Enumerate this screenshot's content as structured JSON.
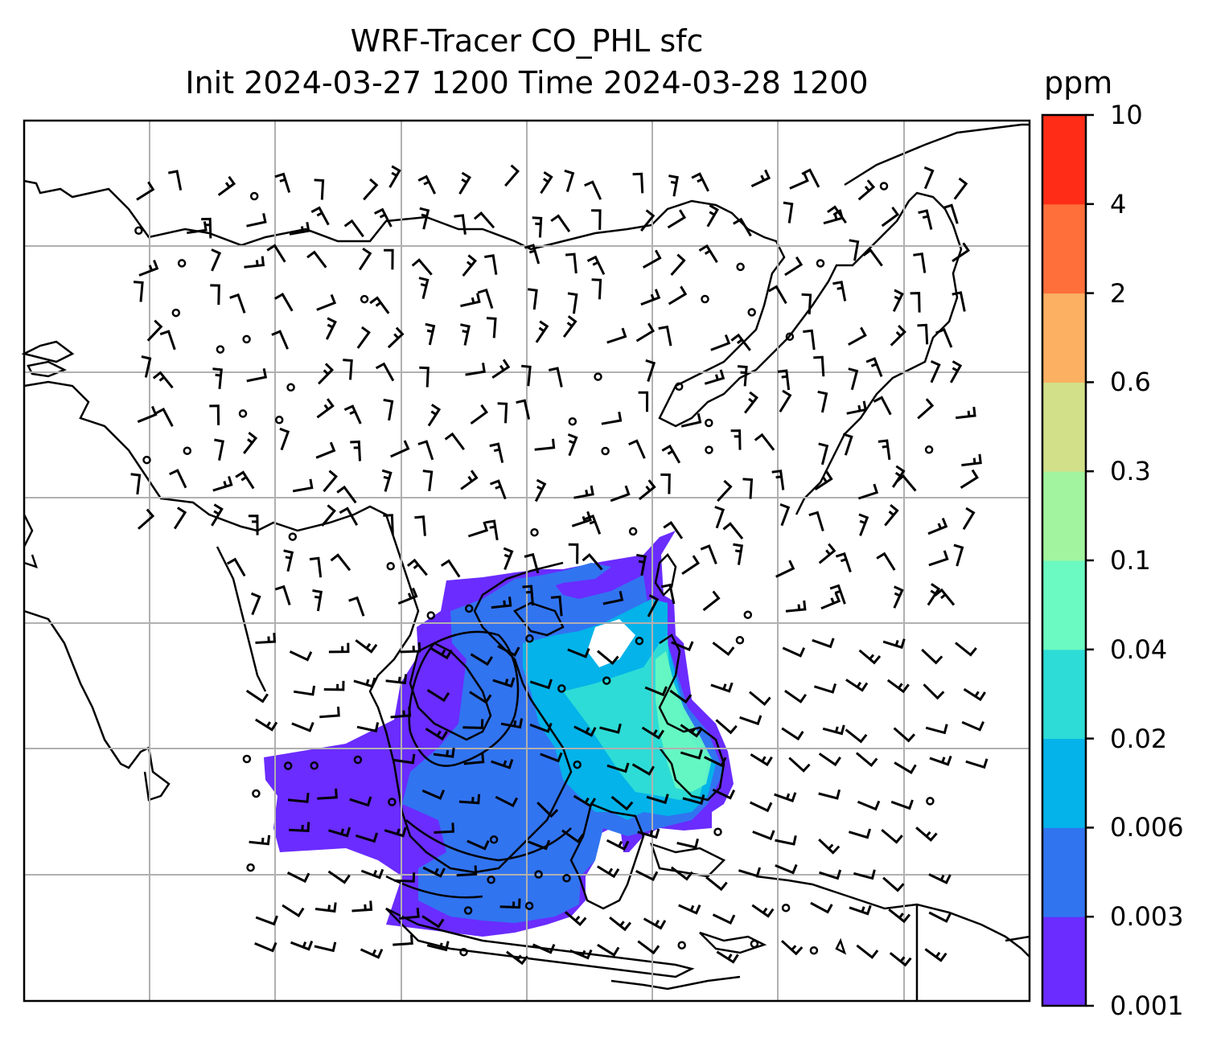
{
  "title": {
    "line1": "WRF-Tracer CO_PHL sfc",
    "line2": "Init 2024-03-27 1200 Time 2024-03-28 1200"
  },
  "colorbar": {
    "unit": "ppm",
    "levels": [
      "0.001",
      "0.003",
      "0.006",
      "0.02",
      "0.04",
      "0.1",
      "0.3",
      "0.6",
      "2",
      "4",
      "10"
    ],
    "colors": [
      "#6a2cff",
      "#3174f0",
      "#03b3e9",
      "#2ddcd6",
      "#6bfac1",
      "#a2f59e",
      "#d2e08a",
      "#fbb062",
      "#ff6f3a",
      "#ff2d17"
    ]
  },
  "map": {
    "gridlines": true,
    "features": [
      "coastlines",
      "country borders",
      "wind barbs",
      "tracer concentration contours"
    ]
  }
}
